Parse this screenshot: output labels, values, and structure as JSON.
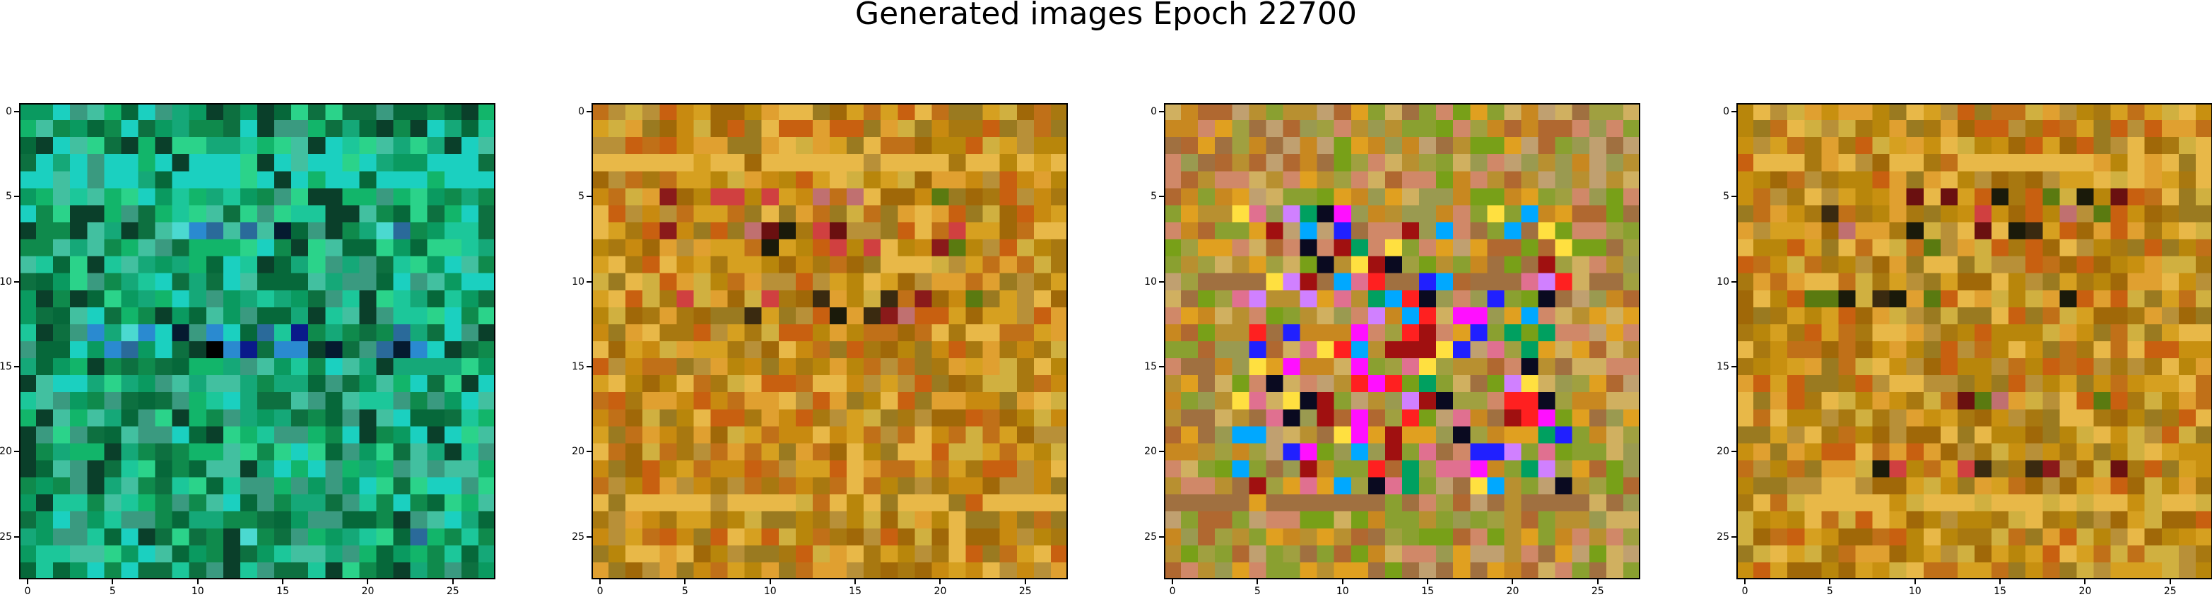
{
  "title": "Generated images Epoch 22700",
  "chart_data": {
    "type": "heatmap",
    "grid_size": 28,
    "xticks": [
      0,
      5,
      10,
      15,
      20,
      25
    ],
    "yticks": [
      0,
      5,
      10,
      15,
      20,
      25
    ],
    "images": [
      {
        "palette": [
          "#0a9a60",
          "#12b56a",
          "#1cc79a",
          "#0f8a4c",
          "#2bd38a",
          "#06683a",
          "#1bd0c0",
          "#3a9a80",
          "#0a3f2a",
          "#15a878",
          "#42c0a0",
          "#0d7040"
        ],
        "accents": [
          "#000000",
          "#051a30",
          "#0a1a8a",
          "#2a6a9a",
          "#4bd9d0",
          "#2a8ad0"
        ],
        "hot_rows": [
          7,
          13,
          14,
          25
        ],
        "bright_rows": [
          3,
          4
        ]
      },
      {
        "palette": [
          "#c88a10",
          "#d6a020",
          "#b8860b",
          "#e0a030",
          "#c07018",
          "#a87810",
          "#d0b040",
          "#b89038",
          "#c86010",
          "#a06808",
          "#e8b848",
          "#9a7a20"
        ],
        "accents": [
          "#6a1010",
          "#3a2a10",
          "#1a1a0a",
          "#8a1a1a",
          "#d04040",
          "#5a7a10",
          "#c07070"
        ],
        "hot_rows": [
          5,
          7,
          8,
          11,
          12
        ],
        "bright_rows": [
          3,
          23
        ]
      },
      {
        "palette": [
          "#b89030",
          "#a0a040",
          "#c88820",
          "#78a018",
          "#d08868",
          "#9a9a50",
          "#c0a070",
          "#b06830",
          "#8aa030",
          "#d0b060",
          "#a07040",
          "#e0a020"
        ],
        "accents": [
          "#ff10ff",
          "#2020ff",
          "#ff2020",
          "#d080ff",
          "#0a0a20",
          "#e07090",
          "#00a8ff",
          "#a01010",
          "#ffe040",
          "#00a060"
        ],
        "hot_rows": [
          6,
          7,
          8,
          9,
          10,
          11,
          12,
          13,
          14,
          15,
          16,
          17,
          18,
          19,
          20,
          21,
          22
        ],
        "bright_rows": [
          10,
          23
        ]
      },
      {
        "palette": [
          "#c89010",
          "#d6a020",
          "#b8860b",
          "#e0a030",
          "#c07018",
          "#a87810",
          "#d0b040",
          "#b89038",
          "#c86010",
          "#a06808",
          "#e8b848",
          "#9a7a20"
        ],
        "accents": [
          "#6a1010",
          "#3a2a10",
          "#1a1a0a",
          "#8a1a1a",
          "#d04040",
          "#5a7a10",
          "#c07070"
        ],
        "hot_rows": [
          5,
          6,
          7,
          8,
          11,
          17,
          21
        ],
        "bright_rows": [
          3,
          23
        ]
      }
    ]
  }
}
